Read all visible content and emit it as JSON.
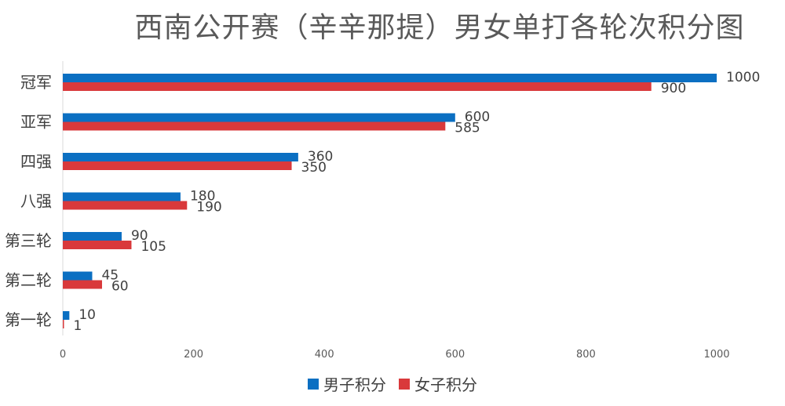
{
  "chart_data": {
    "type": "bar",
    "orientation": "horizontal",
    "title": "西南公开赛（辛辛那提）男女单打各轮次积分图",
    "categories": [
      "冠军",
      "亚军",
      "四强",
      "八强",
      "第三轮",
      "第二轮",
      "第一轮"
    ],
    "series": [
      {
        "name": "男子积分",
        "color": "#0b6fc2",
        "values": [
          1000,
          600,
          360,
          180,
          90,
          45,
          10
        ]
      },
      {
        "name": "女子积分",
        "color": "#d9393b",
        "values": [
          900,
          585,
          350,
          190,
          105,
          60,
          1
        ]
      }
    ],
    "xlim": [
      0,
      1000
    ],
    "xticks": [
      0,
      200,
      400,
      600,
      800,
      1000
    ],
    "grid": false,
    "legend": "bottom"
  }
}
